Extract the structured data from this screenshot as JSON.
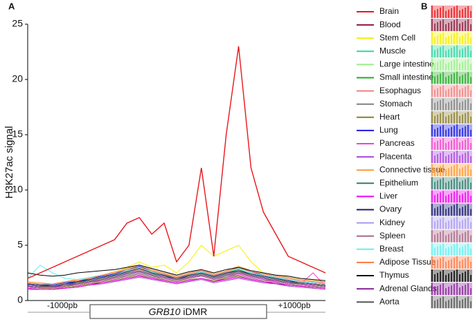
{
  "chart_data": {
    "type": "line",
    "panel_labels": [
      "A",
      "B"
    ],
    "y_label": "H3K27ac signal",
    "ylim": [
      0,
      25
    ],
    "yticks": [
      0,
      5,
      10,
      15,
      20,
      25
    ],
    "annotations": {
      "left": "-1000pb",
      "right": "+1000pb",
      "gene": "GRB10",
      "region": "iDMR"
    },
    "series": [
      {
        "name": "Brain",
        "color": "#e8151b",
        "values": [
          2,
          2.5,
          3,
          3.5,
          4,
          4.5,
          5,
          5.5,
          7,
          7.5,
          6,
          7,
          3.5,
          5,
          12,
          4,
          15,
          23,
          12,
          8,
          6,
          4,
          3.5,
          3,
          2.5
        ]
      },
      {
        "name": "Blood",
        "color": "#8b1a3a",
        "values": [
          1.2,
          1.1,
          1,
          1.2,
          1.3,
          1.5,
          1.6,
          1.8,
          2,
          2.2,
          2,
          1.8,
          1.6,
          1.8,
          2,
          1.7,
          2,
          2.2,
          1.9,
          1.7,
          1.5,
          1.4,
          1.3,
          1.2,
          1.1
        ]
      },
      {
        "name": "Stem Cell",
        "color": "#f5f000",
        "values": [
          1,
          1,
          1.1,
          1.3,
          1.5,
          1.8,
          2,
          2.5,
          3,
          3.5,
          3,
          3.2,
          2.5,
          3.5,
          5,
          4,
          4.5,
          5,
          3.5,
          2.5,
          2,
          1.6,
          1.3,
          1.1,
          1
        ]
      },
      {
        "name": "Muscle",
        "color": "#33d6a0",
        "values": [
          1.6,
          1.5,
          1.4,
          1.6,
          1.8,
          2,
          2.2,
          2.4,
          2.7,
          3,
          2.6,
          2.4,
          2.1,
          2.4,
          2.6,
          2.3,
          2.6,
          2.9,
          2.5,
          2.3,
          2.1,
          1.9,
          1.7,
          1.6,
          1.5
        ]
      },
      {
        "name": "Large intestine",
        "color": "#99ee88",
        "values": [
          1.3,
          1.2,
          1.2,
          1.4,
          1.5,
          1.7,
          1.9,
          2,
          2.3,
          2.5,
          2.2,
          2,
          1.8,
          2.1,
          2.3,
          2,
          2.2,
          2.5,
          2.2,
          2,
          1.8,
          1.6,
          1.5,
          1.4,
          1.3
        ]
      },
      {
        "name": "Small intestine",
        "color": "#22aa22",
        "values": [
          1.4,
          1.3,
          1.3,
          1.5,
          1.6,
          1.9,
          2.1,
          2.3,
          2.6,
          2.9,
          2.5,
          2.3,
          2,
          2.3,
          2.5,
          2.2,
          2.5,
          2.8,
          2.4,
          2.2,
          2,
          1.8,
          1.6,
          1.5,
          1.4
        ]
      },
      {
        "name": "Esophagus",
        "color": "#f08080",
        "values": [
          1.5,
          1.4,
          1.3,
          1.5,
          1.7,
          1.9,
          2.1,
          2.3,
          2.6,
          2.8,
          2.5,
          2.3,
          2,
          2.2,
          2.4,
          2.1,
          2.4,
          2.7,
          2.3,
          2.1,
          1.9,
          1.7,
          1.6,
          1.5,
          1.4
        ]
      },
      {
        "name": "Stomach",
        "color": "#808080",
        "values": [
          1.3,
          1.2,
          1.2,
          1.3,
          1.5,
          1.7,
          1.8,
          2,
          2.3,
          2.5,
          2.2,
          2,
          1.8,
          2,
          2.2,
          1.9,
          2.2,
          2.4,
          2.1,
          1.9,
          1.7,
          1.5,
          1.4,
          1.3,
          1.2
        ]
      },
      {
        "name": "Heart",
        "color": "#8b7d2e",
        "values": [
          1.1,
          1,
          1,
          1.2,
          1.3,
          1.5,
          1.7,
          1.9,
          2.1,
          2.3,
          2,
          1.9,
          1.7,
          1.9,
          2,
          1.8,
          2,
          2.2,
          1.9,
          1.7,
          1.6,
          1.4,
          1.3,
          1.2,
          1.1
        ]
      },
      {
        "name": "Lung",
        "color": "#1a1adf",
        "values": [
          1.5,
          1.4,
          1.4,
          1.6,
          1.7,
          2,
          2.2,
          2.4,
          2.8,
          3.1,
          2.7,
          2.4,
          2.1,
          2.4,
          2.7,
          2.3,
          2.6,
          3,
          2.6,
          2.3,
          2.1,
          1.9,
          1.7,
          1.6,
          1.5
        ]
      },
      {
        "name": "Pancreas",
        "color": "#ee44cc",
        "values": [
          1.2,
          1.1,
          1.1,
          1.3,
          1.4,
          1.6,
          1.8,
          2,
          2.2,
          2.4,
          2.1,
          2,
          1.8,
          2,
          2.2,
          1.9,
          2.1,
          2.4,
          2.1,
          1.9,
          1.8,
          1.6,
          1.5,
          2.5,
          1.3
        ]
      },
      {
        "name": "Placenta",
        "color": "#aa44dd",
        "values": [
          1,
          1,
          1,
          1.1,
          1.2,
          1.4,
          1.5,
          1.7,
          1.9,
          2.1,
          1.9,
          1.7,
          1.5,
          1.7,
          1.9,
          1.6,
          1.8,
          2,
          1.8,
          1.6,
          1.5,
          1.3,
          1.2,
          1.1,
          1
        ]
      },
      {
        "name": "Connective tissue",
        "color": "#ff9933",
        "values": [
          1.7,
          1.6,
          1.5,
          1.7,
          1.9,
          2.1,
          2.3,
          2.6,
          2.9,
          3.2,
          2.8,
          2.5,
          2.2,
          2.5,
          2.8,
          2.4,
          2.7,
          3.1,
          2.7,
          2.5,
          2.3,
          2.1,
          1.9,
          1.8,
          1.7
        ]
      },
      {
        "name": "Epithelium",
        "color": "#2e7d6e",
        "values": [
          1.4,
          1.3,
          1.3,
          1.4,
          1.6,
          1.8,
          2,
          2.2,
          2.5,
          2.7,
          2.4,
          2.2,
          1.9,
          2.2,
          2.4,
          2.1,
          2.4,
          2.6,
          2.3,
          2.1,
          1.9,
          1.7,
          1.5,
          1.4,
          1.3
        ]
      },
      {
        "name": "Liver",
        "color": "#ee00ee",
        "values": [
          1.1,
          1,
          1,
          1.1,
          1.2,
          1.4,
          1.6,
          1.8,
          2,
          2.2,
          2,
          1.8,
          1.6,
          1.8,
          2,
          1.7,
          1.9,
          2.1,
          1.9,
          1.7,
          1.6,
          1.4,
          1.3,
          1.2,
          1.1
        ]
      },
      {
        "name": "Ovary",
        "color": "#1a1a70",
        "values": [
          1.5,
          1.4,
          1.3,
          1.5,
          1.7,
          1.9,
          2.1,
          2.3,
          2.6,
          2.9,
          2.5,
          2.3,
          2,
          2.3,
          2.5,
          2.2,
          2.5,
          2.7,
          2.4,
          2.2,
          2,
          1.8,
          1.6,
          1.5,
          1.4
        ]
      },
      {
        "name": "Kidney",
        "color": "#aa99ee",
        "values": [
          1.3,
          1.2,
          1.2,
          1.4,
          1.5,
          1.7,
          1.9,
          2.1,
          2.4,
          2.6,
          2.3,
          2.1,
          1.9,
          2.1,
          2.3,
          2,
          2.3,
          2.5,
          2.2,
          2,
          1.8,
          1.6,
          1.5,
          1.4,
          1.3
        ]
      },
      {
        "name": "Spleen",
        "color": "#aa6688",
        "values": [
          1.2,
          1.1,
          1.1,
          1.3,
          1.4,
          1.6,
          1.8,
          2,
          2.2,
          2.4,
          2.1,
          2,
          1.8,
          2,
          2.2,
          1.9,
          2.1,
          2.3,
          2,
          1.8,
          1.7,
          1.5,
          1.4,
          1.3,
          1.2
        ]
      },
      {
        "name": "Breast",
        "color": "#66eeee",
        "values": [
          2,
          3.2,
          2.5,
          2,
          1.9,
          2.1,
          2.3,
          2.5,
          2.8,
          3,
          2.7,
          2.4,
          2.1,
          2.4,
          2.6,
          2.3,
          2.6,
          2.9,
          2.5,
          2.3,
          2.1,
          1.9,
          1.7,
          1.6,
          1.5
        ]
      },
      {
        "name": "Adipose Tissue",
        "color": "#ff7744",
        "values": [
          1.6,
          1.5,
          1.5,
          1.7,
          1.8,
          2,
          2.3,
          2.5,
          2.8,
          3,
          2.7,
          2.4,
          2.1,
          2.4,
          2.7,
          2.3,
          2.6,
          3,
          2.6,
          2.4,
          2.2,
          2,
          1.8,
          1.7,
          1.6
        ]
      },
      {
        "name": "Thymus",
        "color": "#000000",
        "values": [
          2.5,
          2.3,
          2.2,
          2.3,
          2.5,
          2.6,
          2.7,
          2.8,
          3,
          3.2,
          2.9,
          2.6,
          2.3,
          2.6,
          2.8,
          2.5,
          2.8,
          3,
          2.7,
          2.5,
          2.3,
          2.2,
          2,
          1.9,
          1.8
        ]
      },
      {
        "name": "Adrenal Glands",
        "color": "#882299",
        "values": [
          1.3,
          1.2,
          1.2,
          1.4,
          1.5,
          1.7,
          1.9,
          2.1,
          2.4,
          2.6,
          2.3,
          2.1,
          1.9,
          2.1,
          2.3,
          2,
          2.3,
          2.5,
          2.2,
          2,
          1.8,
          1.6,
          1.5,
          1.4,
          1.3
        ]
      },
      {
        "name": "Aorta",
        "color": "#555555",
        "values": [
          1.4,
          1.3,
          1.3,
          1.5,
          1.6,
          1.8,
          2,
          2.2,
          2.5,
          2.7,
          2.4,
          2.2,
          2,
          2.2,
          2.4,
          2.1,
          2.4,
          2.6,
          2.3,
          2.1,
          1.9,
          1.7,
          1.6,
          1.5,
          1.4
        ]
      }
    ]
  }
}
